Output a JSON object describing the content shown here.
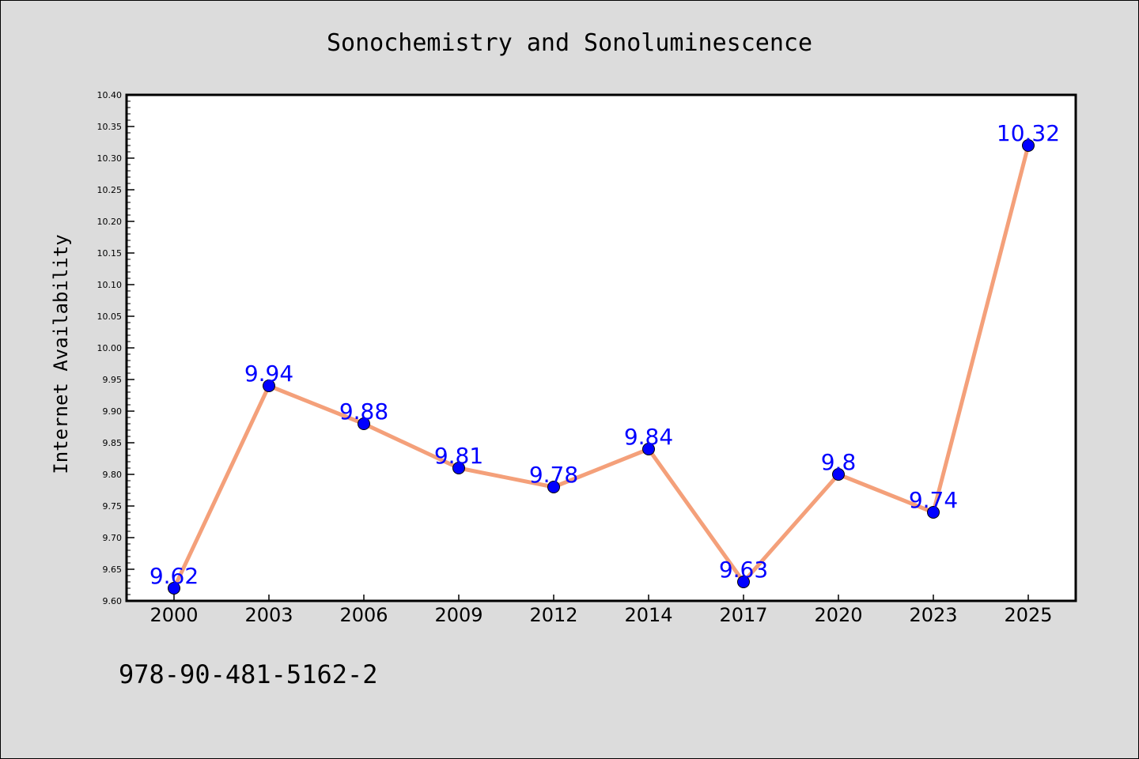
{
  "chart_data": {
    "type": "line",
    "title": "Sonochemistry and Sonoluminescence",
    "xlabel": "",
    "ylabel": "Internet Availability",
    "categories": [
      "2000",
      "2003",
      "2006",
      "2009",
      "2012",
      "2014",
      "2017",
      "2020",
      "2023",
      "2025"
    ],
    "series": [
      {
        "values": [
          9.62,
          9.94,
          9.88,
          9.81,
          9.78,
          9.84,
          9.63,
          9.8,
          9.74,
          10.32
        ],
        "labels": [
          "9.62",
          "9.94",
          "9.88",
          "9.81",
          "9.78",
          "9.84",
          "9.63",
          "9.8",
          "9.74",
          "10.32"
        ]
      }
    ],
    "ylim": [
      9.6,
      10.4
    ],
    "yticks": [
      "9.60",
      "9.65",
      "9.70",
      "9.75",
      "9.80",
      "9.85",
      "9.90",
      "9.95",
      "10.00",
      "10.05",
      "10.10",
      "10.15",
      "10.20",
      "10.25",
      "10.30",
      "10.35",
      "10.40"
    ],
    "grid": false,
    "legend": "none",
    "line_color": "#f4a07a",
    "marker_color": "#0000ff",
    "label_color": "#0000ff"
  },
  "annotation": {
    "isbn": "978-90-481-5162-2"
  },
  "colors": {
    "background": "#dcdcdc",
    "plot_area": "#ffffff"
  }
}
